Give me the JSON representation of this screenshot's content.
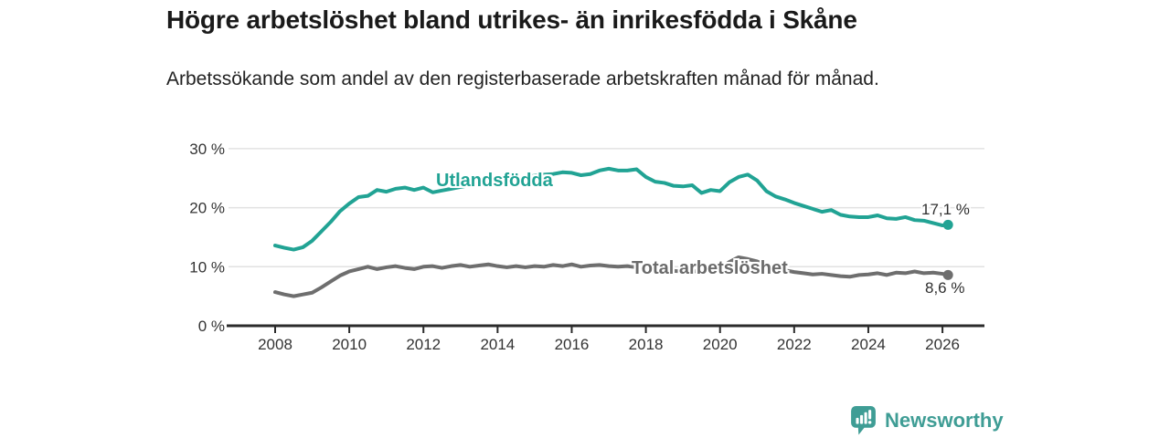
{
  "colors": {
    "accent_teal": "#21a394",
    "series_gray": "#6e6e6e",
    "brand_teal": "#3f9d95",
    "text_dark": "#1a1a1a",
    "axis_text": "#333333",
    "gridline": "#e2e2e2",
    "axis_line": "#2b2b2b"
  },
  "chart_data": {
    "type": "line",
    "title": "Högre arbetslöshet bland utrikes- än inrikesfödda i Skåne",
    "subtitle": "Arbetssökande som andel av den registerbaserade arbetskraften månad för månad.",
    "grid": "horizontal",
    "legend_position": "inline-labels",
    "x_ticks": [
      2008,
      2010,
      2012,
      2014,
      2016,
      2018,
      2020,
      2022,
      2024,
      2026
    ],
    "y_ticks": [
      0,
      10,
      20,
      30
    ],
    "y_tick_suffix": " %",
    "xlim": [
      2006.7,
      2027.1
    ],
    "ylim": [
      0,
      32
    ],
    "series": [
      {
        "name": "Utlandsfödda",
        "color": "#21a394",
        "end_label": "17,1 %",
        "end_value": 17.1,
        "x": [
          2008,
          2008.25,
          2008.5,
          2008.75,
          2009,
          2009.25,
          2009.5,
          2009.75,
          2010,
          2010.25,
          2010.5,
          2010.75,
          2011,
          2011.25,
          2011.5,
          2011.75,
          2012,
          2012.25,
          2012.5,
          2012.75,
          2013,
          2013.25,
          2013.5,
          2013.75,
          2014,
          2014.25,
          2014.5,
          2014.75,
          2015,
          2015.25,
          2015.5,
          2015.75,
          2016,
          2016.25,
          2016.5,
          2016.75,
          2017,
          2017.25,
          2017.5,
          2017.75,
          2018,
          2018.25,
          2018.5,
          2018.75,
          2019,
          2019.25,
          2019.5,
          2019.75,
          2020,
          2020.25,
          2020.5,
          2020.75,
          2021,
          2021.25,
          2021.5,
          2021.75,
          2022,
          2022.25,
          2022.5,
          2022.75,
          2023,
          2023.25,
          2023.5,
          2023.75,
          2024,
          2024.25,
          2024.5,
          2024.75,
          2025,
          2025.25,
          2025.5,
          2025.75,
          2026,
          2026.15
        ],
        "values": [
          13.6,
          13.2,
          12.9,
          13.3,
          14.4,
          16.0,
          17.6,
          19.4,
          20.7,
          21.8,
          22.0,
          23.0,
          22.7,
          23.2,
          23.4,
          23.0,
          23.4,
          22.6,
          22.9,
          23.2,
          23.5,
          23.8,
          24.1,
          24.3,
          24.5,
          24.7,
          24.9,
          25.2,
          25.4,
          25.6,
          25.7,
          26.0,
          25.9,
          25.5,
          25.7,
          26.3,
          26.6,
          26.3,
          26.3,
          26.5,
          25.2,
          24.4,
          24.2,
          23.7,
          23.6,
          23.8,
          22.5,
          23.0,
          22.8,
          24.3,
          25.2,
          25.6,
          24.6,
          22.8,
          21.9,
          21.4,
          20.8,
          20.3,
          19.8,
          19.3,
          19.6,
          18.8,
          18.5,
          18.4,
          18.4,
          18.7,
          18.2,
          18.1,
          18.4,
          17.9,
          17.8,
          17.4,
          17.0,
          17.1
        ]
      },
      {
        "name": "Total arbetslöshet",
        "color": "#6e6e6e",
        "end_label": "8,6 %",
        "end_value": 8.6,
        "x": [
          2008,
          2008.25,
          2008.5,
          2008.75,
          2009,
          2009.25,
          2009.5,
          2009.75,
          2010,
          2010.25,
          2010.5,
          2010.75,
          2011,
          2011.25,
          2011.5,
          2011.75,
          2012,
          2012.25,
          2012.5,
          2012.75,
          2013,
          2013.25,
          2013.5,
          2013.75,
          2014,
          2014.25,
          2014.5,
          2014.75,
          2015,
          2015.25,
          2015.5,
          2015.75,
          2016,
          2016.25,
          2016.5,
          2016.75,
          2017,
          2017.25,
          2017.5,
          2017.75,
          2018,
          2018.25,
          2018.5,
          2018.75,
          2019,
          2019.25,
          2019.5,
          2019.75,
          2020,
          2020.25,
          2020.5,
          2020.75,
          2021,
          2021.25,
          2021.5,
          2021.75,
          2022,
          2022.25,
          2022.5,
          2022.75,
          2023,
          2023.25,
          2023.5,
          2023.75,
          2024,
          2024.25,
          2024.5,
          2024.75,
          2025,
          2025.25,
          2025.5,
          2025.75,
          2026,
          2026.15
        ],
        "values": [
          5.7,
          5.3,
          5.0,
          5.3,
          5.6,
          6.5,
          7.5,
          8.5,
          9.2,
          9.6,
          10.0,
          9.6,
          9.9,
          10.1,
          9.8,
          9.6,
          10.0,
          10.1,
          9.8,
          10.1,
          10.3,
          10.0,
          10.2,
          10.4,
          10.1,
          9.9,
          10.1,
          9.9,
          10.1,
          10.0,
          10.3,
          10.1,
          10.4,
          10.0,
          10.2,
          10.3,
          10.1,
          10.0,
          10.1,
          9.9,
          9.8,
          9.6,
          9.4,
          9.3,
          9.2,
          9.3,
          9.1,
          9.4,
          9.6,
          10.8,
          11.6,
          11.3,
          10.9,
          10.3,
          9.8,
          9.4,
          9.1,
          8.9,
          8.7,
          8.8,
          8.6,
          8.4,
          8.3,
          8.6,
          8.7,
          8.9,
          8.6,
          9.0,
          8.9,
          9.2,
          8.9,
          9.0,
          8.8,
          8.6
        ]
      }
    ]
  },
  "footer": {
    "brand_name": "Newsworthy"
  }
}
